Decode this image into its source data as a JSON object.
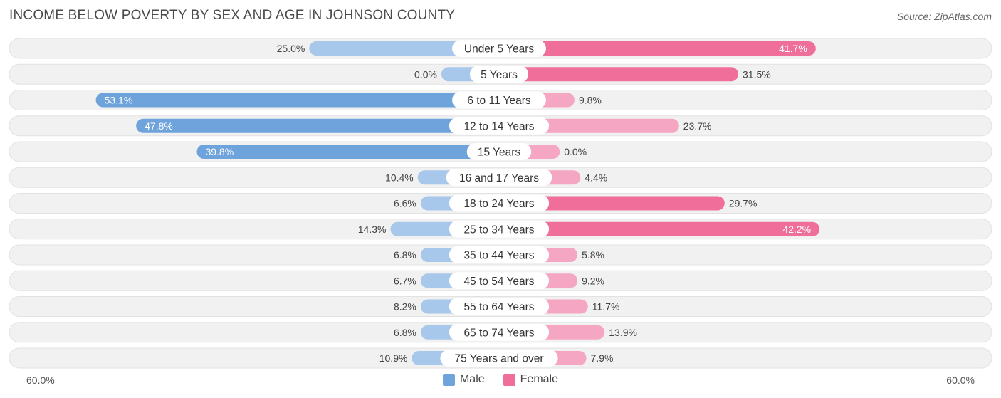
{
  "title": "INCOME BELOW POVERTY BY SEX AND AGE IN JOHNSON COUNTY",
  "source": "Source: ZipAtlas.com",
  "colors": {
    "male_strong": "#6fa3dc",
    "male_light": "#a7c7eb",
    "female_strong": "#f06f9a",
    "female_light": "#f5a6c2",
    "track": "#f1f1f1",
    "track_border": "#e2e2e2"
  },
  "chart_data": {
    "type": "bar",
    "orientation": "horizontal-diverging",
    "title": "INCOME BELOW POVERTY BY SEX AND AGE IN JOHNSON COUNTY",
    "axis_min_label": "60.0%",
    "axis_max_label": "60.0%",
    "xlim": [
      -60,
      60
    ],
    "categories": [
      "Under 5 Years",
      "5 Years",
      "6 to 11 Years",
      "12 to 14 Years",
      "15 Years",
      "16 and 17 Years",
      "18 to 24 Years",
      "25 to 34 Years",
      "35 to 44 Years",
      "45 to 54 Years",
      "55 to 64 Years",
      "65 to 74 Years",
      "75 Years and over"
    ],
    "series": [
      {
        "name": "Male",
        "values": [
          25.0,
          0.0,
          53.1,
          47.8,
          39.8,
          10.4,
          6.6,
          14.3,
          6.8,
          6.7,
          8.2,
          6.8,
          10.9
        ],
        "labels": [
          "25.0%",
          "0.0%",
          "53.1%",
          "47.8%",
          "39.8%",
          "10.4%",
          "6.6%",
          "14.3%",
          "6.8%",
          "6.7%",
          "8.2%",
          "6.8%",
          "10.9%"
        ]
      },
      {
        "name": "Female",
        "values": [
          41.7,
          31.5,
          9.8,
          23.7,
          0.0,
          4.4,
          29.7,
          42.2,
          5.8,
          9.2,
          11.7,
          13.9,
          7.9
        ],
        "labels": [
          "41.7%",
          "31.5%",
          "9.8%",
          "23.7%",
          "0.0%",
          "4.4%",
          "29.7%",
          "42.2%",
          "5.8%",
          "9.2%",
          "11.7%",
          "13.9%",
          "7.9%"
        ]
      }
    ],
    "legend": [
      "Male",
      "Female"
    ]
  }
}
